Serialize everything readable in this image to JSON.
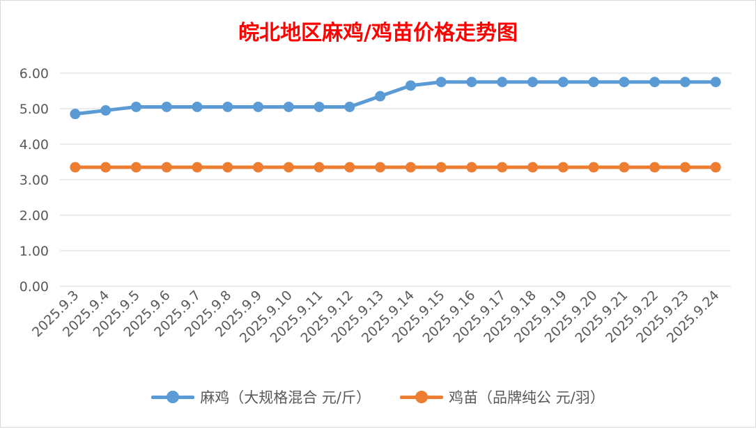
{
  "chart_data": {
    "type": "line",
    "title": "皖北地区麻鸡/鸡苗价格走势图",
    "categories": [
      "2025.9.3",
      "2025.9.4",
      "2025.9.5",
      "2025.9.6",
      "2025.9.7",
      "2025.9.8",
      "2025.9.9",
      "2025.9.10",
      "2025.9.11",
      "2025.9.12",
      "2025.9.13",
      "2025.9.14",
      "2025.9.15",
      "2025.9.16",
      "2025.9.17",
      "2025.9.18",
      "2025.9.19",
      "2025.9.20",
      "2025.9.21",
      "2025.9.22",
      "2025.9.23",
      "2025.9.24"
    ],
    "series": [
      {
        "name": "麻鸡（大规格混合 元/斤）",
        "color": "#5b9bd5",
        "values": [
          4.85,
          4.95,
          5.05,
          5.05,
          5.05,
          5.05,
          5.05,
          5.05,
          5.05,
          5.05,
          5.35,
          5.65,
          5.75,
          5.75,
          5.75,
          5.75,
          5.75,
          5.75,
          5.75,
          5.75,
          5.75,
          5.75
        ]
      },
      {
        "name": "鸡苗（品牌纯公 元/羽）",
        "color": "#ed7d31",
        "values": [
          3.35,
          3.35,
          3.35,
          3.35,
          3.35,
          3.35,
          3.35,
          3.35,
          3.35,
          3.35,
          3.35,
          3.35,
          3.35,
          3.35,
          3.35,
          3.35,
          3.35,
          3.35,
          3.35,
          3.35,
          3.35,
          3.35
        ]
      }
    ],
    "y_ticks": [
      "0.00",
      "1.00",
      "2.00",
      "3.00",
      "4.00",
      "5.00",
      "6.00"
    ],
    "ylim": [
      0,
      6
    ],
    "grid": true,
    "legend_position": "bottom"
  }
}
